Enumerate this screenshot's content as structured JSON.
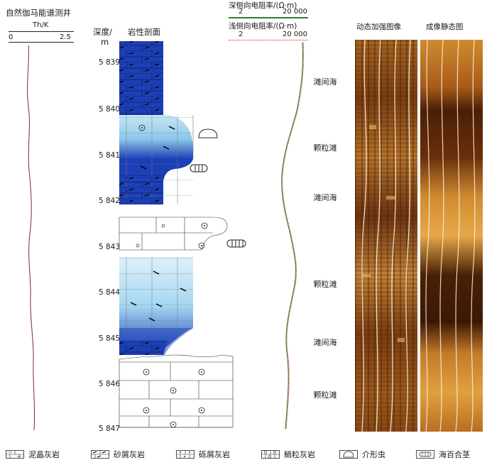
{
  "gamma": {
    "title": "自然伽马能谱测井",
    "unit": "Th/K",
    "scale_min": "0",
    "scale_max": "2.5"
  },
  "lithology": {
    "depth_header": "深度/",
    "depth_unit": "m",
    "profile_header": "岩性剖面",
    "depths": [
      "5 839",
      "5 840",
      "5 841",
      "5 842",
      "5 843",
      "5 844",
      "5 845",
      "5 846",
      "5 847"
    ]
  },
  "resistivity": {
    "deep_label": "深侧向电阻率/(Ω·m)",
    "deep_min": "2",
    "deep_max": "20 000",
    "shallow_label": "浅侧向电阻率/(Ω·m)",
    "shallow_min": "2",
    "shallow_max": "20 000",
    "deep_color": "#2e7d32",
    "shallow_color": "#c62828"
  },
  "facies": [
    "滩间海",
    "颗粒滩",
    "滩间海",
    "颗粒滩",
    "滩间海",
    "颗粒滩"
  ],
  "images": {
    "dynamic_title": "动态加强图像",
    "static_title": "成像静态图"
  },
  "legend": [
    {
      "label": "泥晶灰岩",
      "icon": "micrite-limestone-icon"
    },
    {
      "label": "砂屑灰岩",
      "icon": "calcarenite-icon"
    },
    {
      "label": "砾屑灰岩",
      "icon": "calcirudite-icon"
    },
    {
      "label": "鲕粒灰岩",
      "icon": "oolitic-limestone-icon"
    },
    {
      "label": "介形虫",
      "icon": "ostracod-icon"
    },
    {
      "label": "海百合茎",
      "icon": "crinoid-stem-icon"
    }
  ],
  "colors": {
    "blue_dark": "#1c3fb5",
    "blue_light": "#bfe3f3",
    "curve": "#7a2a2a"
  }
}
